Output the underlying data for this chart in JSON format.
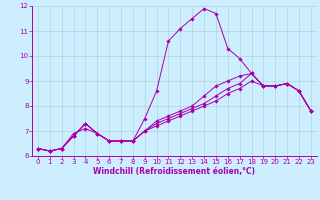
{
  "xlabel": "Windchill (Refroidissement éolien,°C)",
  "ylabel": "",
  "background_color": "#cceeff",
  "line_color": "#aa00aa",
  "grid_color": "#aacccc",
  "xlim": [
    -0.5,
    23.5
  ],
  "ylim": [
    6.0,
    12.0
  ],
  "yticks": [
    6,
    7,
    8,
    9,
    10,
    11,
    12
  ],
  "xticks": [
    0,
    1,
    2,
    3,
    4,
    5,
    6,
    7,
    8,
    9,
    10,
    11,
    12,
    13,
    14,
    15,
    16,
    17,
    18,
    19,
    20,
    21,
    22,
    23
  ],
  "series": [
    [
      6.3,
      6.2,
      6.3,
      6.8,
      7.3,
      6.9,
      6.6,
      6.6,
      6.6,
      7.5,
      8.6,
      10.6,
      11.1,
      11.5,
      11.9,
      11.7,
      10.3,
      9.9,
      9.3,
      8.8,
      8.8,
      8.9,
      8.6,
      7.8
    ],
    [
      6.3,
      6.2,
      6.3,
      6.8,
      7.3,
      6.9,
      6.6,
      6.6,
      6.6,
      7.0,
      7.4,
      7.6,
      7.8,
      8.0,
      8.4,
      8.8,
      9.0,
      9.2,
      9.3,
      8.8,
      8.8,
      8.9,
      8.6,
      7.8
    ],
    [
      6.3,
      6.2,
      6.3,
      6.8,
      7.3,
      6.9,
      6.6,
      6.6,
      6.6,
      7.0,
      7.3,
      7.5,
      7.7,
      7.9,
      8.1,
      8.4,
      8.7,
      8.9,
      9.3,
      8.8,
      8.8,
      8.9,
      8.6,
      7.8
    ],
    [
      6.3,
      6.2,
      6.3,
      6.9,
      7.1,
      6.9,
      6.6,
      6.6,
      6.6,
      7.0,
      7.2,
      7.4,
      7.6,
      7.8,
      8.0,
      8.2,
      8.5,
      8.7,
      9.0,
      8.8,
      8.8,
      8.9,
      8.6,
      7.8
    ]
  ],
  "tick_fontsize": 5.0,
  "xlabel_fontsize": 5.5,
  "marker_size": 1.8,
  "linewidth": 0.7
}
